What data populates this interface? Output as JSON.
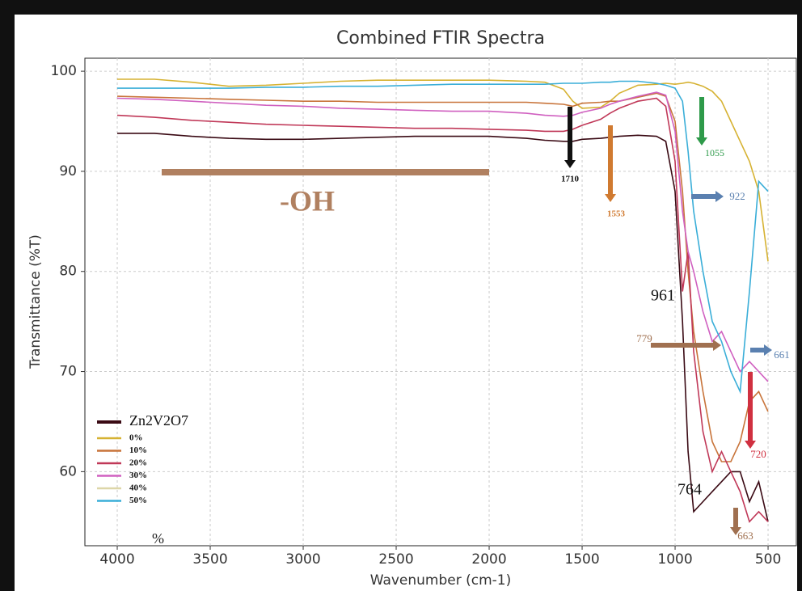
{
  "chart_data": {
    "type": "line",
    "title": "Combined FTIR Spectra",
    "x_label": "Wavenumber (cm-1)",
    "y_label": "Transmittance (%T)",
    "x": [
      4000,
      3800,
      3600,
      3400,
      3200,
      3000,
      2800,
      2600,
      2400,
      2200,
      2000,
      1800,
      1700,
      1600,
      1550,
      1500,
      1400,
      1350,
      1300,
      1200,
      1100,
      1050,
      1000,
      960,
      930,
      900,
      850,
      800,
      750,
      700,
      650,
      600,
      550,
      500
    ],
    "xlim": [
      4174,
      348
    ],
    "ylim": [
      52.6,
      101.3
    ],
    "xticks": [
      4000,
      3500,
      3000,
      2500,
      2000,
      1500,
      1000,
      500
    ],
    "yticks": [
      60,
      70,
      80,
      90,
      100
    ],
    "grid": true,
    "legend_position": "lower left",
    "series": [
      {
        "name": "Zn2V2O7",
        "color": "#3a0a14",
        "values": [
          93.8,
          93.8,
          93.5,
          93.3,
          93.2,
          93.2,
          93.3,
          93.4,
          93.5,
          93.5,
          93.5,
          93.3,
          93.1,
          93,
          93,
          93.2,
          93.3,
          93.4,
          93.5,
          93.6,
          93.5,
          93,
          88,
          75,
          62,
          56,
          57,
          58,
          59,
          60,
          60,
          57,
          59,
          55
        ]
      },
      {
        "name": "0%",
        "color": "#d6b232",
        "values": [
          99.2,
          99.2,
          98.9,
          98.5,
          98.6,
          98.8,
          99,
          99.1,
          99.1,
          99.1,
          99.1,
          99,
          98.9,
          98.2,
          97,
          96.3,
          96.4,
          97,
          97.8,
          98.6,
          98.7,
          98.8,
          98.7,
          98.8,
          98.9,
          98.8,
          98.5,
          98,
          97,
          95,
          93,
          91,
          88,
          81
        ]
      },
      {
        "name": "10%",
        "color": "#c8743a",
        "values": [
          97.5,
          97.4,
          97.3,
          97.2,
          97.1,
          97,
          97,
          96.9,
          96.9,
          96.9,
          96.9,
          96.9,
          96.8,
          96.7,
          96.5,
          96.8,
          96.9,
          97,
          97,
          97.4,
          97.8,
          97.5,
          95,
          88,
          80,
          74,
          68,
          63,
          61,
          61,
          63,
          67,
          68,
          66
        ]
      },
      {
        "name": "20%",
        "color": "#c03858",
        "values": [
          95.6,
          95.4,
          95.1,
          94.9,
          94.7,
          94.6,
          94.5,
          94.4,
          94.3,
          94.3,
          94.2,
          94.1,
          94,
          94,
          94.2,
          94.6,
          95.2,
          95.8,
          96.3,
          97,
          97.3,
          96.5,
          91,
          78,
          82,
          72,
          64,
          60,
          62,
          60,
          58,
          55,
          56,
          55
        ]
      },
      {
        "name": "30%",
        "color": "#d060c0",
        "values": [
          97.3,
          97.2,
          97,
          96.8,
          96.6,
          96.5,
          96.3,
          96.2,
          96.1,
          96,
          96,
          95.8,
          95.6,
          95.5,
          95.6,
          95.9,
          96.3,
          96.7,
          97,
          97.5,
          97.9,
          97.6,
          94,
          86,
          82,
          80,
          76,
          73,
          74,
          72,
          70,
          71,
          70,
          69
        ]
      },
      {
        "name": "40%",
        "color": "#ddd6a8",
        "values": [
          null,
          null,
          null,
          null,
          null,
          null,
          null,
          null,
          null,
          null,
          null,
          null,
          null,
          null,
          null,
          null,
          null,
          null,
          null,
          null,
          null,
          null,
          null,
          null,
          null,
          null,
          null,
          null,
          null,
          null,
          null,
          null,
          null,
          null
        ]
      },
      {
        "name": "50%",
        "color": "#3aaed8",
        "values": [
          98.3,
          98.3,
          98.3,
          98.3,
          98.4,
          98.4,
          98.5,
          98.5,
          98.6,
          98.7,
          98.7,
          98.7,
          98.7,
          98.8,
          98.8,
          98.8,
          98.9,
          98.9,
          99,
          99,
          98.8,
          98.6,
          98.3,
          97,
          92,
          86,
          80,
          75,
          73,
          70,
          68,
          78,
          89,
          88
        ]
      }
    ],
    "legend_note": "%",
    "annotations": [
      {
        "text": "-OH",
        "color": "#b08060"
      },
      {
        "text": "1710",
        "color": "#111111"
      },
      {
        "text": "1553",
        "color": "#d07a30"
      },
      {
        "text": "1055",
        "color": "#2e9a4a"
      },
      {
        "text": "922",
        "color": "#5a80b0"
      },
      {
        "text": "961",
        "color": "#111111"
      },
      {
        "text": "779",
        "color": "#a07050"
      },
      {
        "text": "661",
        "color": "#5a80b0"
      },
      {
        "text": "720",
        "color": "#d03040"
      },
      {
        "text": "764",
        "color": "#111111"
      },
      {
        "text": "663",
        "color": "#a07050"
      }
    ]
  }
}
